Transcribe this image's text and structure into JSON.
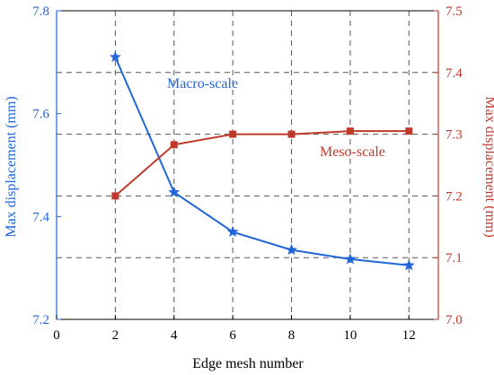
{
  "chart_data": {
    "type": "line",
    "xlabel": "Edge mesh number",
    "ylabel_left": "Max displacement (mm)",
    "ylabel_right": "Max displacement (mm)",
    "xlim": [
      0,
      13
    ],
    "ylim_left": [
      7.2,
      7.8
    ],
    "ylim_right": [
      7.0,
      7.5
    ],
    "x_ticks": [
      0,
      2,
      4,
      6,
      8,
      10,
      12
    ],
    "y_ticks_left": [
      "7.2",
      "7.4",
      "7.6",
      "7.8"
    ],
    "y_ticks_right": [
      "7.0",
      "7.1",
      "7.2",
      "7.3",
      "7.4",
      "7.5"
    ],
    "grid": "dashed",
    "series": [
      {
        "name": "Macro-scale",
        "axis": "left",
        "color": "#2166d9",
        "marker": "star",
        "x": [
          2,
          4,
          6,
          8,
          10,
          12
        ],
        "values": [
          7.71,
          7.447,
          7.37,
          7.335,
          7.317,
          7.305
        ]
      },
      {
        "name": "Meso-scale",
        "axis": "right",
        "color": "#c0392b",
        "marker": "square",
        "x": [
          2,
          4,
          6,
          8,
          10,
          12
        ],
        "values": [
          7.2,
          7.283,
          7.3,
          7.3,
          7.305,
          7.305
        ]
      }
    ],
    "axis_colors": {
      "left": "#2166d9",
      "right": "#c0392b"
    }
  }
}
